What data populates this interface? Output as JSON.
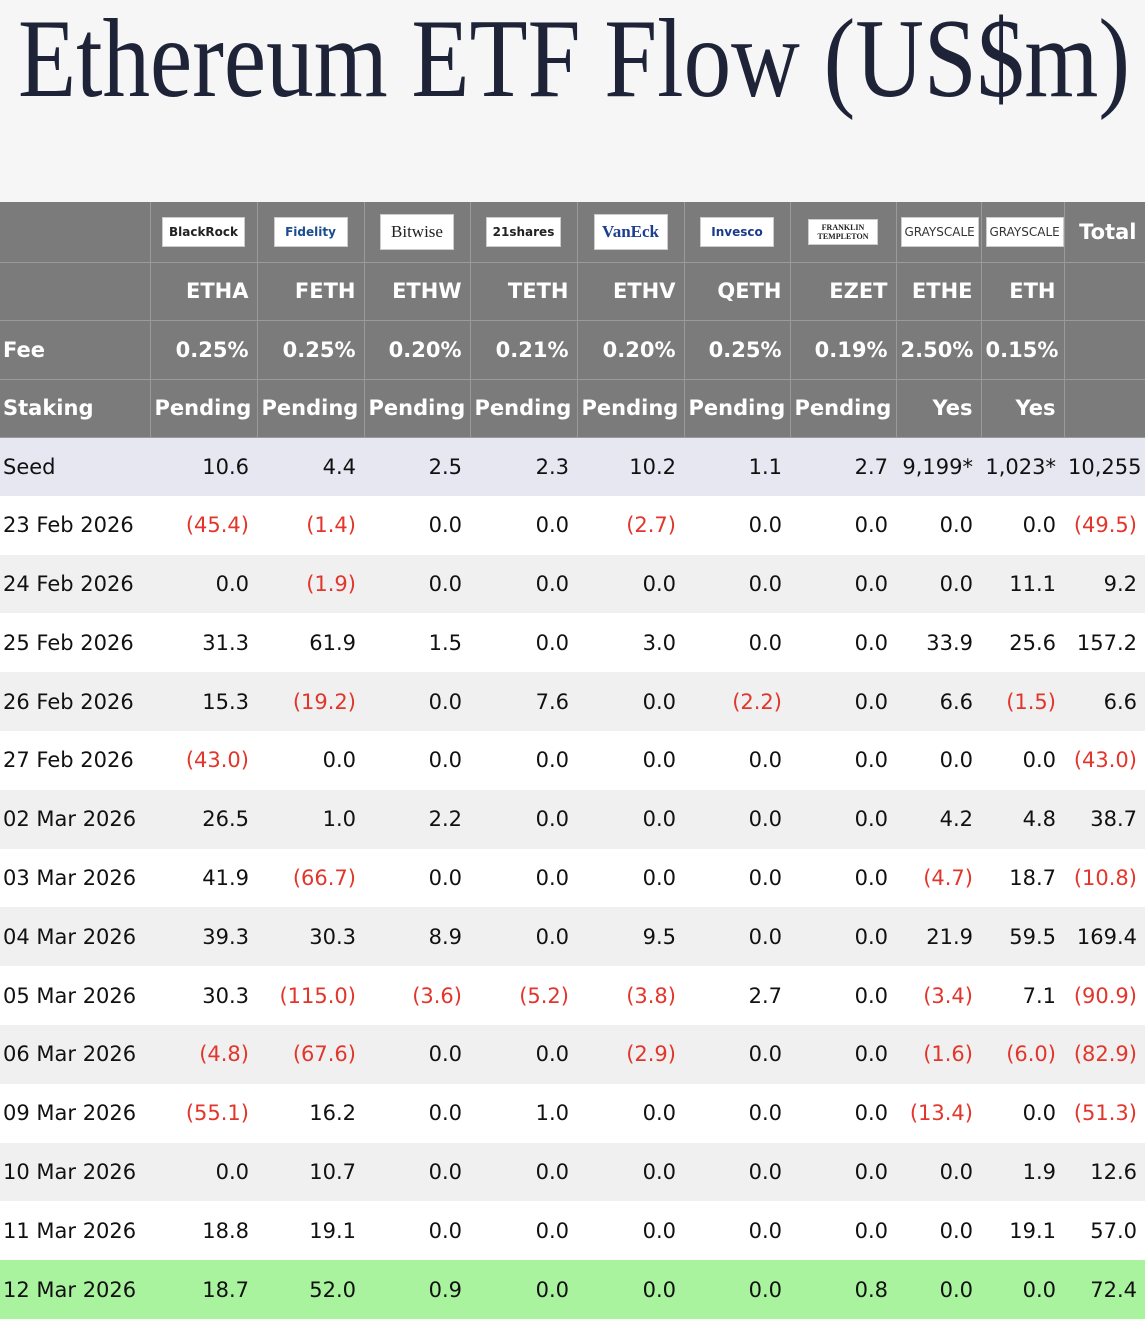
{
  "title": "Ethereum ETF Flow (US$m)",
  "table": {
    "issuers": [
      "BlackRock",
      "Fidelity",
      "Bitwise",
      "21shares",
      "VanEck",
      "Invesco",
      "FRANKLIN TEMPLETON",
      "GRAYSCALE",
      "GRAYSCALE"
    ],
    "total_header": "Total",
    "tickers": [
      "ETHA",
      "FETH",
      "ETHW",
      "TETH",
      "ETHV",
      "QETH",
      "EZET",
      "ETHE",
      "ETH"
    ],
    "fee_label": "Fee",
    "fees": [
      "0.25%",
      "0.25%",
      "0.20%",
      "0.21%",
      "0.20%",
      "0.25%",
      "0.19%",
      "2.50%",
      "0.15%"
    ],
    "staking_label": "Staking",
    "staking": [
      "Pending",
      "Pending",
      "Pending",
      "Pending",
      "Pending",
      "Pending",
      "Pending",
      "Yes",
      "Yes"
    ],
    "rows": [
      [
        "Seed",
        "10.6",
        "4.4",
        "2.5",
        "2.3",
        "10.2",
        "1.1",
        "2.7",
        "9,199*",
        "1,023*",
        "10,255"
      ],
      [
        "23 Feb 2026",
        "(45.4)",
        "(1.4)",
        "0.0",
        "0.0",
        "(2.7)",
        "0.0",
        "0.0",
        "0.0",
        "0.0",
        "(49.5)"
      ],
      [
        "24 Feb 2026",
        "0.0",
        "(1.9)",
        "0.0",
        "0.0",
        "0.0",
        "0.0",
        "0.0",
        "0.0",
        "11.1",
        "9.2"
      ],
      [
        "25 Feb 2026",
        "31.3",
        "61.9",
        "1.5",
        "0.0",
        "3.0",
        "0.0",
        "0.0",
        "33.9",
        "25.6",
        "157.2"
      ],
      [
        "26 Feb 2026",
        "15.3",
        "(19.2)",
        "0.0",
        "7.6",
        "0.0",
        "(2.2)",
        "0.0",
        "6.6",
        "(1.5)",
        "6.6"
      ],
      [
        "27 Feb 2026",
        "(43.0)",
        "0.0",
        "0.0",
        "0.0",
        "0.0",
        "0.0",
        "0.0",
        "0.0",
        "0.0",
        "(43.0)"
      ],
      [
        "02 Mar 2026",
        "26.5",
        "1.0",
        "2.2",
        "0.0",
        "0.0",
        "0.0",
        "0.0",
        "4.2",
        "4.8",
        "38.7"
      ],
      [
        "03 Mar 2026",
        "41.9",
        "(66.7)",
        "0.0",
        "0.0",
        "0.0",
        "0.0",
        "0.0",
        "(4.7)",
        "18.7",
        "(10.8)"
      ],
      [
        "04 Mar 2026",
        "39.3",
        "30.3",
        "8.9",
        "0.0",
        "9.5",
        "0.0",
        "0.0",
        "21.9",
        "59.5",
        "169.4"
      ],
      [
        "05 Mar 2026",
        "30.3",
        "(115.0)",
        "(3.6)",
        "(5.2)",
        "(3.8)",
        "2.7",
        "0.0",
        "(3.4)",
        "7.1",
        "(90.9)"
      ],
      [
        "06 Mar 2026",
        "(4.8)",
        "(67.6)",
        "0.0",
        "0.0",
        "(2.9)",
        "0.0",
        "0.0",
        "(1.6)",
        "(6.0)",
        "(82.9)"
      ],
      [
        "09 Mar 2026",
        "(55.1)",
        "16.2",
        "0.0",
        "1.0",
        "0.0",
        "0.0",
        "0.0",
        "(13.4)",
        "0.0",
        "(51.3)"
      ],
      [
        "10 Mar 2026",
        "0.0",
        "10.7",
        "0.0",
        "0.0",
        "0.0",
        "0.0",
        "0.0",
        "0.0",
        "1.9",
        "12.6"
      ],
      [
        "11 Mar 2026",
        "18.8",
        "19.1",
        "0.0",
        "0.0",
        "0.0",
        "0.0",
        "0.0",
        "0.0",
        "19.1",
        "57.0"
      ],
      [
        "12 Mar 2026",
        "18.7",
        "52.0",
        "0.9",
        "0.0",
        "0.0",
        "0.0",
        "0.8",
        "0.0",
        "0.0",
        "72.4"
      ]
    ]
  },
  "negative_color": "#e2362c"
}
